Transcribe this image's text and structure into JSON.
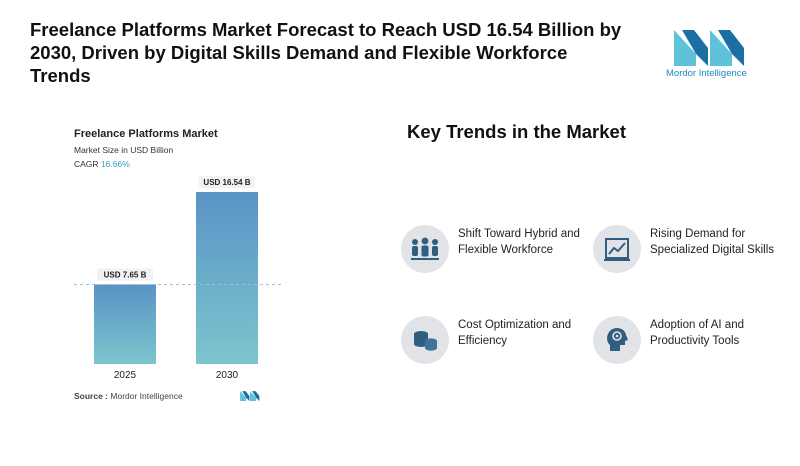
{
  "headline": "Freelance Platforms Market Forecast to Reach USD 16.54 Billion by 2030, Driven by Digital Skills Demand and Flexible Workforce Trends",
  "brand": {
    "logo_text": "Mordor Intelligence",
    "color": "#1e88b8",
    "mark_colors": [
      "#5ec3d8",
      "#1b6fa3"
    ]
  },
  "chart_card": {
    "title": "Freelance Platforms Market",
    "subtitle": "Market Size in USD Billion",
    "cagr_label": "CAGR",
    "cagr_value": "16.66%",
    "source_label": "Source :",
    "source_value": "Mordor Intelligence"
  },
  "chart_data": {
    "type": "bar",
    "categories": [
      "2025",
      "2030"
    ],
    "values": [
      7.65,
      16.54
    ],
    "data_labels": [
      "USD 7.65 B",
      "USD 16.54 B"
    ],
    "title": "Freelance Platforms Market",
    "ylabel": "Market Size in USD Billion",
    "ylim": [
      0,
      16.54
    ],
    "reference_line_value": 7.65,
    "bar_gradient": [
      "#5a93c5",
      "#7cc6ce"
    ],
    "grid": false
  },
  "trends": {
    "title": "Key Trends in the Market",
    "items": [
      {
        "label": "Shift Toward Hybrid and Flexible Workforce",
        "icon": "people-group-icon"
      },
      {
        "label": "Rising Demand for Specialized Digital Skills",
        "icon": "growth-chart-icon"
      },
      {
        "label": "Cost Optimization and Efficiency",
        "icon": "coins-stack-icon"
      },
      {
        "label": "Adoption of AI and Productivity Tools",
        "icon": "ai-head-icon"
      }
    ]
  }
}
